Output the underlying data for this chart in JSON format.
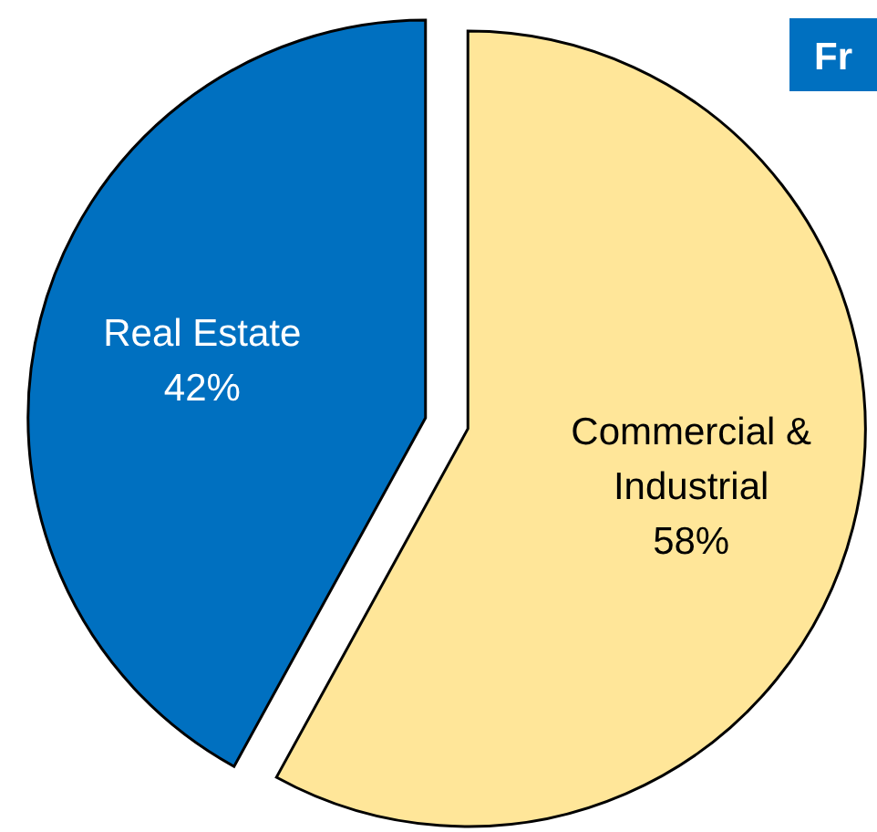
{
  "chart_data": {
    "type": "pie",
    "categories": [
      "Real Estate",
      "Commercial & Industrial"
    ],
    "values": [
      42,
      58
    ],
    "colors": [
      "#0070c0",
      "#ffe699"
    ],
    "value_labels": [
      "42%",
      "58%"
    ],
    "annotations": [
      "Fr"
    ]
  }
}
